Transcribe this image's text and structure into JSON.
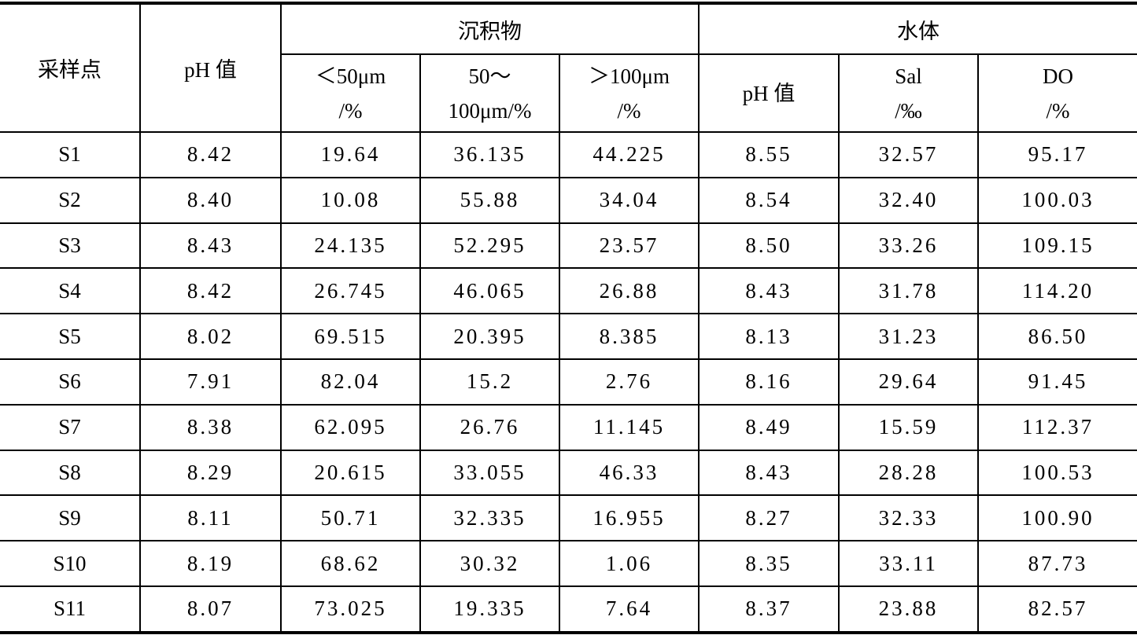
{
  "table": {
    "headers": {
      "site": "采样点",
      "ph": "pH 值",
      "sediment": "沉积物",
      "water": "水体",
      "sed_lt50": [
        "＜50μm",
        "/%"
      ],
      "sed_50_100": [
        "50～",
        "100μm/%"
      ],
      "sed_gt100": [
        "＞100μm",
        "/%"
      ],
      "water_ph": "pH 值",
      "sal": [
        "Sal",
        "/‰"
      ],
      "do": [
        "DO",
        "/%"
      ]
    },
    "rows": [
      [
        "S1",
        "8.42",
        "19.64",
        "36.135",
        "44.225",
        "8.55",
        "32.57",
        "95.17"
      ],
      [
        "S2",
        "8.40",
        "10.08",
        "55.88",
        "34.04",
        "8.54",
        "32.40",
        "100.03"
      ],
      [
        "S3",
        "8.43",
        "24.135",
        "52.295",
        "23.57",
        "8.50",
        "33.26",
        "109.15"
      ],
      [
        "S4",
        "8.42",
        "26.745",
        "46.065",
        "26.88",
        "8.43",
        "31.78",
        "114.20"
      ],
      [
        "S5",
        "8.02",
        "69.515",
        "20.395",
        "8.385",
        "8.13",
        "31.23",
        "86.50"
      ],
      [
        "S6",
        "7.91",
        "82.04",
        "15.2",
        "2.76",
        "8.16",
        "29.64",
        "91.45"
      ],
      [
        "S7",
        "8.38",
        "62.095",
        "26.76",
        "11.145",
        "8.49",
        "15.59",
        "112.37"
      ],
      [
        "S8",
        "8.29",
        "20.615",
        "33.055",
        "46.33",
        "8.43",
        "28.28",
        "100.53"
      ],
      [
        "S9",
        "8.11",
        "50.71",
        "32.335",
        "16.955",
        "8.27",
        "32.33",
        "100.90"
      ],
      [
        "S10",
        "8.19",
        "68.62",
        "30.32",
        "1.06",
        "8.35",
        "33.11",
        "87.73"
      ],
      [
        "S11",
        "8.07",
        "73.025",
        "19.335",
        "7.64",
        "8.37",
        "23.88",
        "82.57"
      ]
    ]
  }
}
